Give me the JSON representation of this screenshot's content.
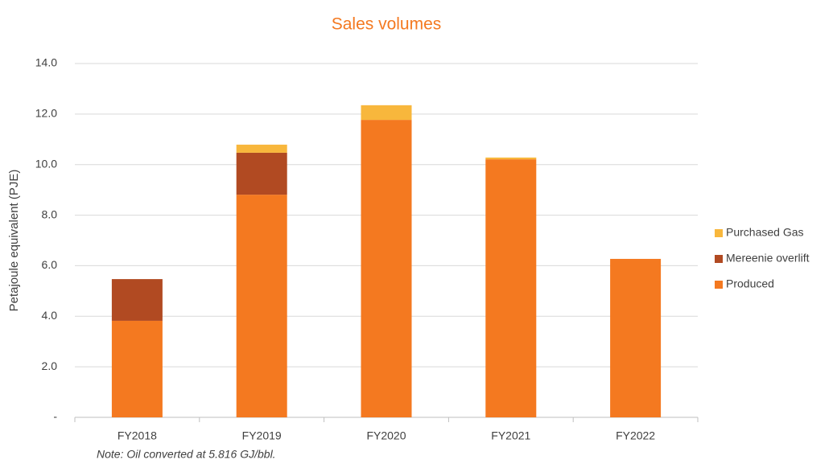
{
  "chart_data": {
    "type": "stacked_bar",
    "title": "Sales volumes",
    "y_label": "Petajoule equivalent (PJE)",
    "note": "Note: Oil converted at 5.816 GJ/bbl.",
    "categories": [
      "FY2018",
      "FY2019",
      "FY2020",
      "FY2021",
      "FY2022"
    ],
    "series": [
      {
        "name": "Produced",
        "color": "#f47920",
        "values": [
          3.82,
          8.81,
          11.77,
          10.21,
          6.27
        ]
      },
      {
        "name": "Mereenie overlift",
        "color": "#b14a22",
        "values": [
          1.65,
          1.66,
          0,
          0,
          0
        ]
      },
      {
        "name": "Purchased Gas",
        "color": "#f8b73c",
        "values": [
          0,
          0.32,
          0.58,
          0.07,
          0
        ]
      }
    ],
    "ylim": [
      0,
      14
    ],
    "yticks": [
      {
        "value": 0,
        "label": "-"
      },
      {
        "value": 2,
        "label": "2.0"
      },
      {
        "value": 4,
        "label": "4.0"
      },
      {
        "value": 6,
        "label": "6.0"
      },
      {
        "value": 8,
        "label": "8.0"
      },
      {
        "value": 10,
        "label": "10.0"
      },
      {
        "value": 12,
        "label": "12.0"
      },
      {
        "value": 14,
        "label": "14.0"
      }
    ],
    "grid": true,
    "legend": "right"
  }
}
